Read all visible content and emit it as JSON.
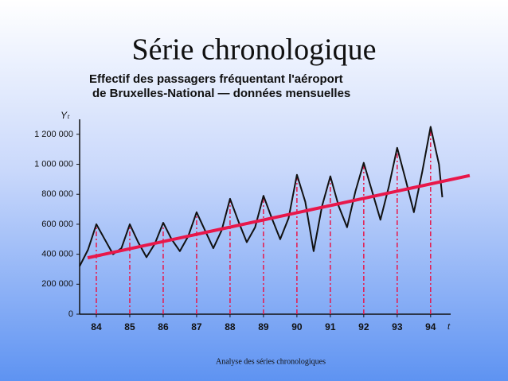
{
  "slide_title": "Série chronologique",
  "footer": "Analyse des séries chronologiques",
  "chart_data": {
    "type": "line",
    "title": [
      "Effectif des passagers fréquentant l'aéroport",
      "de Bruxelles-National — données mensuelles"
    ],
    "y_label": "Yₜ",
    "x_label": "t",
    "x": [
      83.5,
      83.75,
      84,
      84.25,
      84.5,
      84.75,
      85,
      85.25,
      85.5,
      85.75,
      86,
      86.25,
      86.5,
      86.75,
      87,
      87.25,
      87.5,
      87.75,
      88,
      88.25,
      88.5,
      88.75,
      89,
      89.25,
      89.5,
      89.75,
      90,
      90.25,
      90.5,
      90.75,
      91,
      91.25,
      91.5,
      91.75,
      92,
      92.25,
      92.5,
      92.75,
      93,
      93.25,
      93.5,
      93.75,
      94,
      94.25,
      94.35
    ],
    "series": [
      {
        "color": "#111111",
        "values": [
          320000,
          430000,
          600000,
          500000,
          400000,
          440000,
          600000,
          480000,
          380000,
          470000,
          610000,
          500000,
          420000,
          520000,
          680000,
          560000,
          440000,
          560000,
          770000,
          620000,
          480000,
          580000,
          790000,
          640000,
          500000,
          640000,
          930000,
          750000,
          420000,
          720000,
          920000,
          720000,
          580000,
          820000,
          1010000,
          820000,
          630000,
          850000,
          1110000,
          900000,
          680000,
          950000,
          1250000,
          1000000,
          780000
        ]
      }
    ],
    "trend": {
      "x": [
        83.74,
        95.17
      ],
      "values": [
        376000,
        925000
      ],
      "color": "#e8174a"
    },
    "marker_color": "#e8174a",
    "xlim": [
      83.5,
      94.6
    ],
    "ylim": [
      0,
      1300000
    ],
    "xticks": [
      84,
      85,
      86,
      87,
      88,
      89,
      90,
      91,
      92,
      93,
      94
    ],
    "yticks": [
      0,
      {
        "value": 200000,
        "label": "200 000"
      },
      {
        "value": 400000,
        "label": "400 000"
      },
      {
        "value": 600000,
        "label": "600 000"
      },
      {
        "value": 800000,
        "label": "800 000"
      },
      {
        "value": 1000000,
        "label": "1 000 000"
      },
      {
        "value": 1200000,
        "label": "1 200 000"
      }
    ]
  }
}
